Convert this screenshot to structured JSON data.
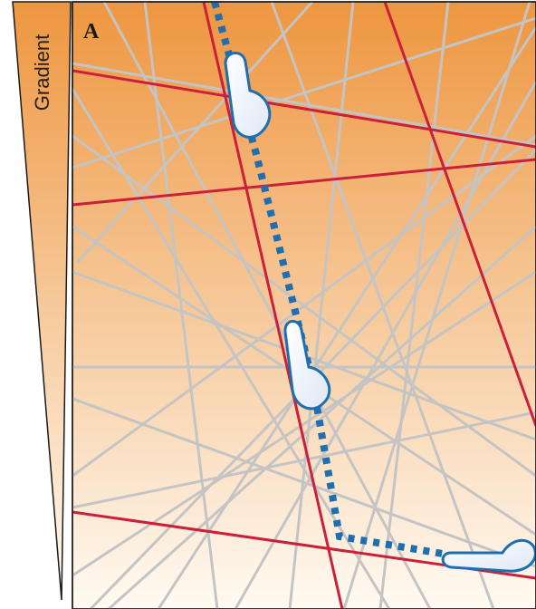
{
  "panel_label": "A",
  "gradient_label": "Gradient",
  "colors": {
    "gradient_top": "#ee963f",
    "gradient_bottom": "#fffaf2",
    "grey_fiber": "#c4c4c4",
    "red_fiber": "#cc1f3a",
    "path": "#1f6fb0",
    "cell_fill": "#dfe8f6",
    "cell_stroke": "#1f6fb0"
  }
}
